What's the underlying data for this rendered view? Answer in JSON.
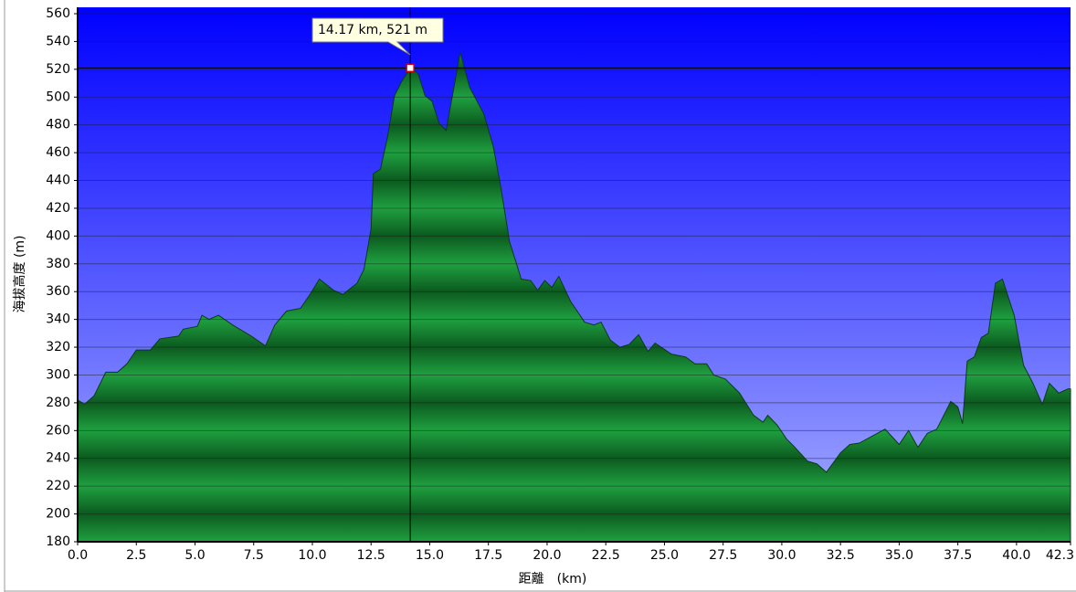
{
  "chart_data": {
    "type": "area",
    "x_label": "距離　(km)",
    "y_label": "海拔高度 (m)",
    "annotation": "14.17 km, 521 m",
    "cursor": {
      "x": 14.17,
      "y": 521
    },
    "color": "#1fa040",
    "background": [
      "#0000ff",
      "#a8b0ff"
    ],
    "grid": true,
    "x": [
      0.0,
      0.3,
      0.7,
      1.2,
      1.7,
      2.1,
      2.5,
      3.1,
      3.5,
      4.3,
      4.5,
      5.1,
      5.3,
      5.6,
      6.0,
      6.6,
      7.4,
      8.0,
      8.4,
      8.9,
      9.5,
      9.9,
      10.3,
      10.9,
      11.3,
      11.9,
      12.2,
      12.5,
      12.6,
      12.9,
      13.2,
      13.5,
      13.8,
      14.17,
      14.5,
      14.8,
      15.1,
      15.4,
      15.7,
      16.0,
      16.3,
      16.7,
      17.3,
      17.7,
      18.0,
      18.4,
      18.9,
      19.3,
      19.6,
      19.9,
      20.2,
      20.5,
      21.0,
      21.6,
      22.0,
      22.3,
      22.7,
      23.1,
      23.5,
      23.9,
      24.3,
      24.6,
      25.3,
      25.9,
      26.3,
      26.8,
      27.1,
      27.6,
      28.2,
      28.8,
      29.2,
      29.4,
      29.8,
      30.2,
      30.5,
      31.1,
      31.5,
      31.9,
      32.5,
      32.9,
      33.3,
      34.4,
      35.0,
      35.4,
      35.8,
      36.2,
      36.6,
      37.2,
      37.5,
      37.7,
      37.9,
      38.2,
      38.5,
      38.8,
      39.1,
      39.4,
      39.9,
      40.3,
      40.7,
      41.1,
      41.4,
      41.8,
      42.2,
      42.3
    ],
    "values": [
      282,
      279,
      285,
      302,
      302,
      308,
      318,
      318,
      326,
      328,
      333,
      335,
      343,
      340,
      343,
      336,
      328,
      321,
      336,
      346,
      348,
      358,
      369,
      361,
      358,
      366,
      376,
      405,
      445,
      448,
      471,
      501,
      511,
      521,
      517,
      501,
      497,
      481,
      476,
      504,
      532,
      507,
      488,
      465,
      438,
      396,
      369,
      368,
      361,
      368,
      363,
      371,
      353,
      338,
      336,
      338,
      325,
      320,
      322,
      329,
      317,
      323,
      315,
      313,
      308,
      308,
      300,
      297,
      287,
      271,
      266,
      271,
      264,
      254,
      249,
      238,
      236,
      230,
      244,
      250,
      251,
      261,
      250,
      260,
      248,
      258,
      261,
      281,
      277,
      265,
      310,
      313,
      327,
      330,
      366,
      369,
      343,
      307,
      294,
      279,
      294,
      287,
      290,
      290
    ],
    "xlim": [
      0,
      42.3
    ],
    "ylim": [
      180,
      560
    ],
    "xticks": [
      {
        "value": 0,
        "label": "0.0"
      },
      2.5,
      {
        "value": 5,
        "label": "5.0"
      },
      7.5,
      {
        "value": 10,
        "label": "10.0"
      },
      12.5,
      {
        "value": 15,
        "label": "15.0"
      },
      17.5,
      {
        "value": 20,
        "label": "20.0"
      },
      22.5,
      {
        "value": 25,
        "label": "25.0"
      },
      27.5,
      {
        "value": 30,
        "label": "30.0"
      },
      32.5,
      {
        "value": 35,
        "label": "35.0"
      },
      37.5,
      {
        "value": 40,
        "label": "40.0"
      },
      42.3
    ],
    "yticks": [
      180,
      200,
      220,
      240,
      260,
      280,
      300,
      320,
      340,
      360,
      380,
      400,
      420,
      440,
      460,
      480,
      500,
      520,
      540,
      560
    ]
  }
}
